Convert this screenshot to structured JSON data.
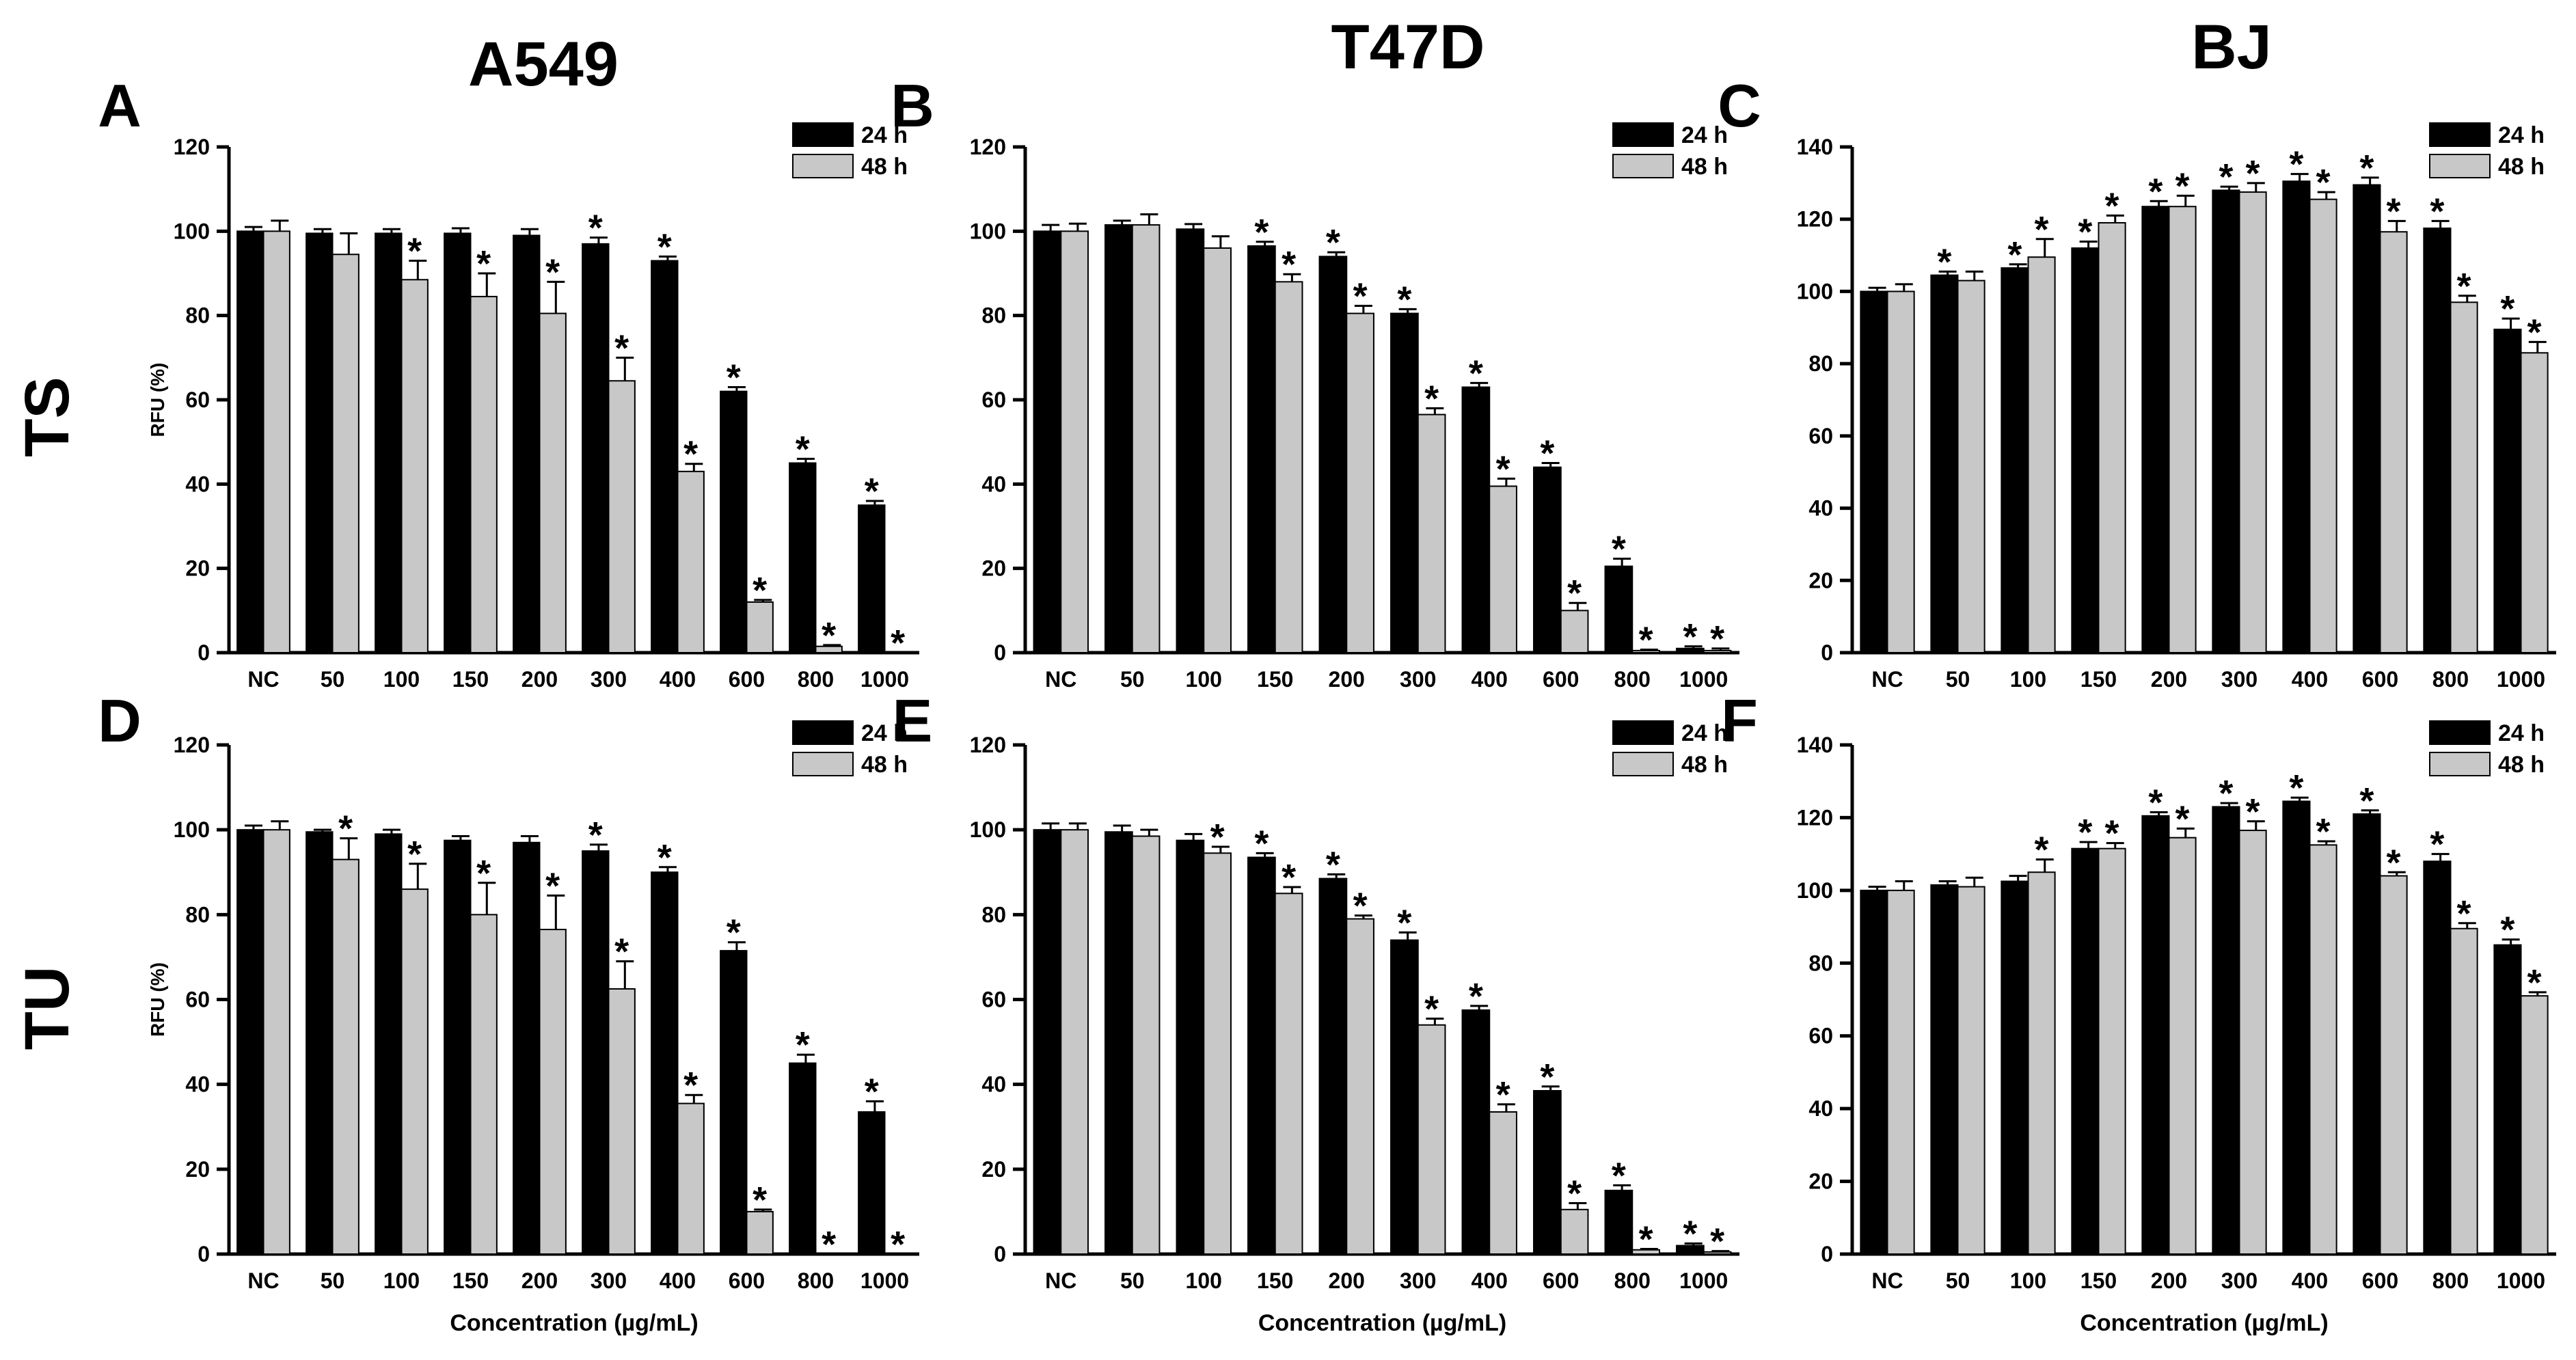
{
  "figure": {
    "column_titles": [
      "A549",
      "T47D",
      "BJ"
    ],
    "row_titles": [
      "TS",
      "TU"
    ],
    "xlabel": "Concentration (µg/mL)",
    "ylabel": "RFU (%)",
    "legend": [
      "24 h",
      "48 h"
    ],
    "colors": {
      "24 h": "#000000",
      "48 h": "#c8c8c8"
    }
  },
  "chart_data": [
    {
      "type": "bar",
      "panel": "A",
      "categories": [
        "NC",
        "50",
        "100",
        "150",
        "200",
        "300",
        "400",
        "600",
        "800",
        "1000"
      ],
      "ylim": [
        0,
        120
      ],
      "yticks": [
        0,
        20,
        40,
        60,
        80,
        100,
        120
      ],
      "legend_position": "top-right",
      "series": [
        {
          "name": "24 h",
          "values": [
            100,
            99.5,
            99.5,
            99.5,
            99,
            97,
            93,
            62,
            45,
            35
          ],
          "errors": [
            1,
            1,
            1,
            1.2,
            1.5,
            1.5,
            1,
            1,
            1,
            1
          ],
          "sig": [
            false,
            false,
            false,
            false,
            false,
            true,
            true,
            true,
            true,
            true
          ]
        },
        {
          "name": "48 h",
          "values": [
            100,
            94.5,
            88.5,
            84.5,
            80.5,
            64.5,
            43,
            12,
            1.5,
            0
          ],
          "errors": [
            2.5,
            5,
            4.5,
            5.5,
            7.5,
            5.5,
            1.8,
            0.5,
            0.3,
            0
          ],
          "sig": [
            false,
            false,
            true,
            true,
            true,
            true,
            true,
            true,
            true,
            true
          ]
        }
      ]
    },
    {
      "type": "bar",
      "panel": "B",
      "categories": [
        "NC",
        "50",
        "100",
        "150",
        "200",
        "300",
        "400",
        "600",
        "800",
        "1000"
      ],
      "ylim": [
        0,
        120
      ],
      "yticks": [
        0,
        20,
        40,
        60,
        80,
        100,
        120
      ],
      "legend_position": "top-right",
      "series": [
        {
          "name": "24 h",
          "values": [
            100,
            101.5,
            100.5,
            96.5,
            94,
            80.5,
            63,
            44,
            20.5,
            1
          ],
          "errors": [
            1.5,
            1,
            1.2,
            1,
            1,
            1,
            1,
            1,
            1.8,
            0.5
          ],
          "sig": [
            false,
            false,
            false,
            true,
            true,
            true,
            true,
            true,
            true,
            true
          ]
        },
        {
          "name": "48 h",
          "values": [
            100,
            101.5,
            96,
            88,
            80.5,
            56.5,
            39.5,
            10,
            0.5,
            0.5
          ],
          "errors": [
            1.8,
            2.5,
            2.8,
            1.8,
            1.8,
            1.5,
            1.8,
            1.8,
            0.2,
            0.5
          ],
          "sig": [
            false,
            false,
            false,
            true,
            true,
            true,
            true,
            true,
            true,
            true
          ]
        }
      ]
    },
    {
      "type": "bar",
      "panel": "C",
      "categories": [
        "NC",
        "50",
        "100",
        "150",
        "200",
        "300",
        "400",
        "600",
        "800",
        "1000"
      ],
      "ylim": [
        0,
        140
      ],
      "yticks": [
        0,
        20,
        40,
        60,
        80,
        100,
        120,
        140
      ],
      "legend_position": "top-right",
      "series": [
        {
          "name": "24 h",
          "values": [
            100,
            104.5,
            106.5,
            112,
            123.5,
            128,
            130.5,
            129.5,
            117.5,
            89.5
          ],
          "errors": [
            1,
            1,
            1,
            1.8,
            1.5,
            1,
            2,
            2,
            2,
            3
          ],
          "sig": [
            false,
            true,
            true,
            true,
            true,
            true,
            true,
            true,
            true,
            true
          ]
        },
        {
          "name": "48 h",
          "values": [
            100,
            103,
            109.5,
            119,
            123.5,
            127.5,
            125.5,
            116.5,
            97,
            83
          ],
          "errors": [
            2,
            2.5,
            5,
            2,
            3,
            2.5,
            2,
            3,
            1.8,
            3
          ],
          "sig": [
            false,
            false,
            true,
            true,
            true,
            true,
            true,
            true,
            true,
            true
          ]
        }
      ]
    },
    {
      "type": "bar",
      "panel": "D",
      "categories": [
        "NC",
        "50",
        "100",
        "150",
        "200",
        "300",
        "400",
        "600",
        "800",
        "1000"
      ],
      "ylim": [
        0,
        120
      ],
      "yticks": [
        0,
        20,
        40,
        60,
        80,
        100,
        120
      ],
      "legend_position": "top-right",
      "series": [
        {
          "name": "24 h",
          "values": [
            100,
            99.5,
            99,
            97.5,
            97,
            95,
            90,
            71.5,
            45,
            33.5
          ],
          "errors": [
            1,
            0.5,
            1,
            1,
            1.5,
            1.5,
            1.2,
            2,
            2,
            2.5
          ],
          "sig": [
            false,
            false,
            false,
            false,
            false,
            true,
            true,
            true,
            true,
            true
          ]
        },
        {
          "name": "48 h",
          "values": [
            100,
            93,
            86,
            80,
            76.5,
            62.5,
            35.5,
            10,
            0,
            0
          ],
          "errors": [
            2,
            5,
            6,
            7.5,
            8,
            6.5,
            2,
            0.5,
            0,
            0
          ],
          "sig": [
            false,
            true,
            true,
            true,
            true,
            true,
            true,
            true,
            true,
            true
          ]
        }
      ]
    },
    {
      "type": "bar",
      "panel": "E",
      "categories": [
        "NC",
        "50",
        "100",
        "150",
        "200",
        "300",
        "400",
        "600",
        "800",
        "1000"
      ],
      "ylim": [
        0,
        120
      ],
      "yticks": [
        0,
        20,
        40,
        60,
        80,
        100,
        120
      ],
      "legend_position": "top-right",
      "series": [
        {
          "name": "24 h",
          "values": [
            100,
            99.5,
            97.5,
            93.5,
            88.5,
            74,
            57.5,
            38.5,
            15,
            2
          ],
          "errors": [
            1.5,
            1.5,
            1.5,
            1,
            1,
            1.8,
            1,
            1,
            1.2,
            0.5
          ],
          "sig": [
            false,
            false,
            false,
            true,
            true,
            true,
            true,
            true,
            true,
            true
          ]
        },
        {
          "name": "48 h",
          "values": [
            100,
            98.5,
            94.5,
            85,
            79,
            54,
            33.5,
            10.5,
            1,
            0.5
          ],
          "errors": [
            1.5,
            1.5,
            1.5,
            1.5,
            0.8,
            1.5,
            1.8,
            1.5,
            0.2,
            0.2
          ],
          "sig": [
            false,
            false,
            true,
            true,
            true,
            true,
            true,
            true,
            true,
            true
          ]
        }
      ]
    },
    {
      "type": "bar",
      "panel": "F",
      "categories": [
        "NC",
        "50",
        "100",
        "150",
        "200",
        "300",
        "400",
        "600",
        "800",
        "1000"
      ],
      "ylim": [
        0,
        140
      ],
      "yticks": [
        0,
        20,
        40,
        60,
        80,
        100,
        120,
        140
      ],
      "legend_position": "top-right",
      "series": [
        {
          "name": "24 h",
          "values": [
            100,
            101.5,
            102.5,
            111.5,
            120.5,
            123,
            124.5,
            121,
            108,
            85
          ],
          "errors": [
            1,
            1,
            1.5,
            1.8,
            1,
            1,
            1,
            1,
            2,
            1.5
          ],
          "sig": [
            false,
            false,
            false,
            true,
            true,
            true,
            true,
            true,
            true,
            true
          ]
        },
        {
          "name": "48 h",
          "values": [
            100,
            101,
            105,
            111.5,
            114.5,
            116.5,
            112.5,
            104,
            89.5,
            71
          ],
          "errors": [
            2.5,
            2.5,
            3.5,
            1.5,
            2.5,
            2.5,
            1,
            1,
            1.5,
            1
          ],
          "sig": [
            false,
            false,
            true,
            true,
            true,
            true,
            true,
            true,
            true,
            true
          ]
        }
      ]
    }
  ]
}
